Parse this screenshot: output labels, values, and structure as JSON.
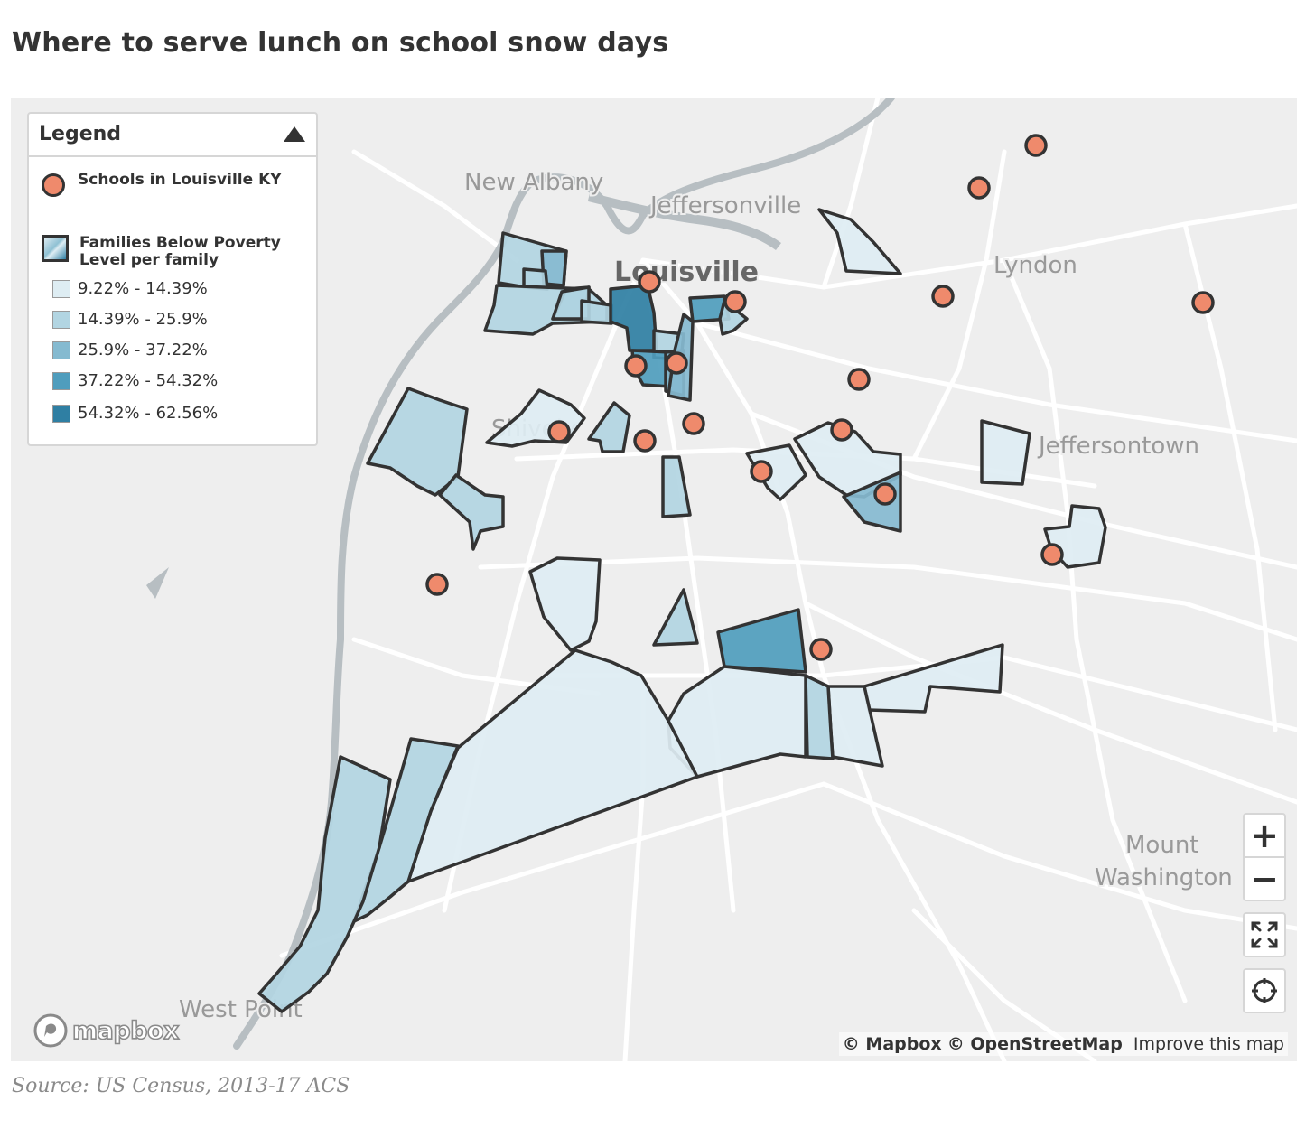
{
  "title": "Where to serve lunch on school snow days",
  "source": "Source: US Census, 2013-17 ACS",
  "legend": {
    "title": "Legend",
    "layers": {
      "schools": "Schools in Louisville KY",
      "poverty": "Families Below Poverty Level per family"
    },
    "bins": [
      {
        "label": "9.22% - 14.39%",
        "color": "#deedf3"
      },
      {
        "label": "14.39% - 25.9%",
        "color": "#b2d5e2"
      },
      {
        "label": "25.9% - 37.22%",
        "color": "#85bad0"
      },
      {
        "label": "37.22% - 54.32%",
        "color": "#4f9dbd"
      },
      {
        "label": "54.32% - 62.56%",
        "color": "#2f7fa3"
      }
    ]
  },
  "places": {
    "new_albany": "New Albany",
    "jeffersonville": "Jeffersonville",
    "louisville": "Louisville",
    "lyndon": "Lyndon",
    "shively": "Shively",
    "jeffersontown": "Jeffersontown",
    "mount": "Mount",
    "washington": "Washington",
    "west_point": "West Point"
  },
  "controls": {
    "zoom_in": "+",
    "zoom_out": "−"
  },
  "attribution": {
    "mapbox": "© Mapbox",
    "osm": "© OpenStreetMap",
    "improve": "Improve this map"
  },
  "logo": "mapbox",
  "colors": {
    "school": "#ef8a6c",
    "outline": "#333333",
    "water": "#a9b1b6"
  }
}
